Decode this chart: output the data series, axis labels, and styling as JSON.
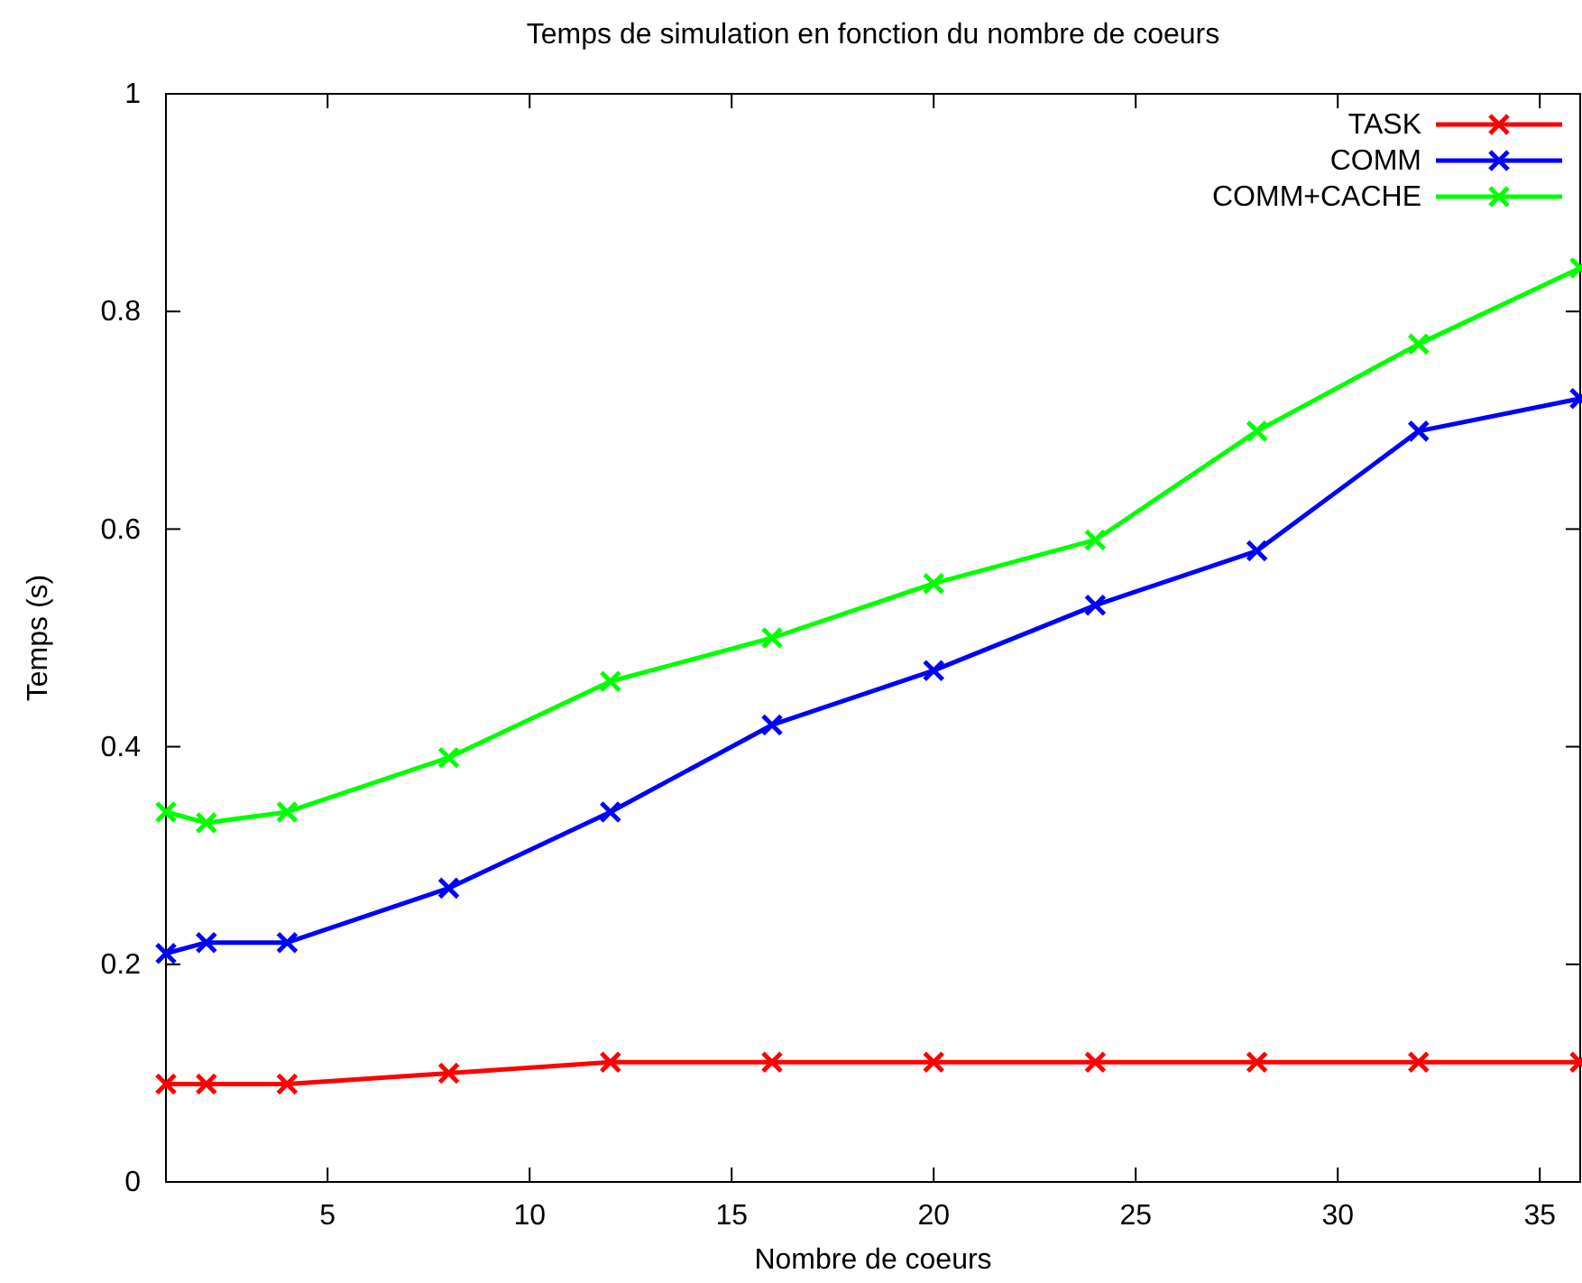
{
  "chart_data": {
    "type": "line",
    "title": "Temps de simulation en fonction du nombre de coeurs",
    "xlabel": "Nombre de coeurs",
    "ylabel": "Temps (s)",
    "x": [
      1,
      2,
      4,
      8,
      12,
      16,
      20,
      24,
      28,
      32,
      36
    ],
    "series": [
      {
        "name": "TASK",
        "color": "#ff0000",
        "values": [
          0.09,
          0.09,
          0.09,
          0.1,
          0.11,
          0.11,
          0.11,
          0.11,
          0.11,
          0.11,
          0.11
        ]
      },
      {
        "name": "COMM",
        "color": "#0000ff",
        "values": [
          0.21,
          0.22,
          0.22,
          0.27,
          0.34,
          0.42,
          0.47,
          0.53,
          0.58,
          0.69,
          0.72
        ]
      },
      {
        "name": "COMM+CACHE",
        "color": "#00ff00",
        "values": [
          0.34,
          0.33,
          0.34,
          0.39,
          0.46,
          0.5,
          0.55,
          0.59,
          0.69,
          0.77,
          0.84
        ]
      }
    ],
    "xlim": [
      1,
      36
    ],
    "xticks": [
      5,
      10,
      15,
      20,
      25,
      30,
      35
    ],
    "ylim": [
      0,
      1
    ],
    "yticks": [
      0,
      0.2,
      0.4,
      0.6,
      0.8,
      1
    ],
    "grid": false,
    "legend": "top right",
    "marker": "cross",
    "line_style": "solid"
  }
}
